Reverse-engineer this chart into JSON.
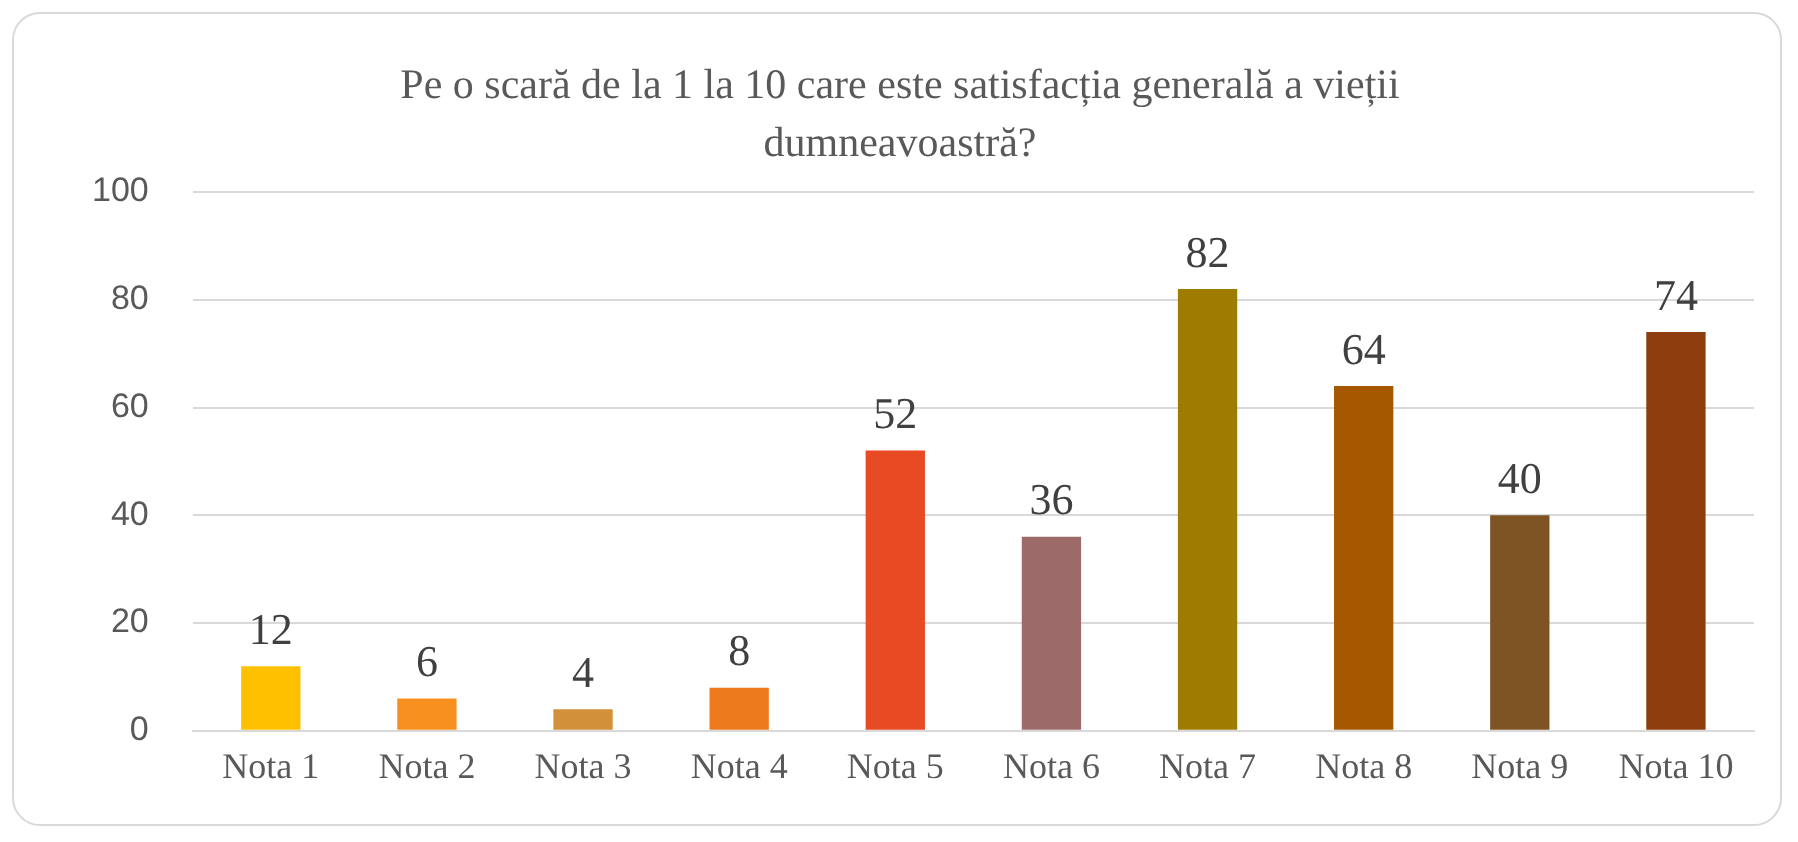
{
  "chart_data": {
    "type": "bar",
    "title": "Pe o scară de la 1 la 10 care este satisfacția generală a vieții dumneavoastră?",
    "categories": [
      "Nota 1",
      "Nota 2",
      "Nota 3",
      "Nota 4",
      "Nota 5",
      "Nota 6",
      "Nota 7",
      "Nota 8",
      "Nota 9",
      "Nota 10"
    ],
    "values": [
      12,
      6,
      4,
      8,
      52,
      36,
      82,
      64,
      40,
      74
    ],
    "colors": [
      "#ffc000",
      "#f7901e",
      "#d3903b",
      "#ee7a1e",
      "#e84a24",
      "#9d6a6a",
      "#9e7c00",
      "#a65800",
      "#7e5424",
      "#8e3d0e"
    ],
    "ylim": [
      0,
      100
    ],
    "yticks": [
      0,
      20,
      40,
      60,
      80,
      100
    ],
    "grid": "y",
    "data_labels": true,
    "legend": false
  }
}
